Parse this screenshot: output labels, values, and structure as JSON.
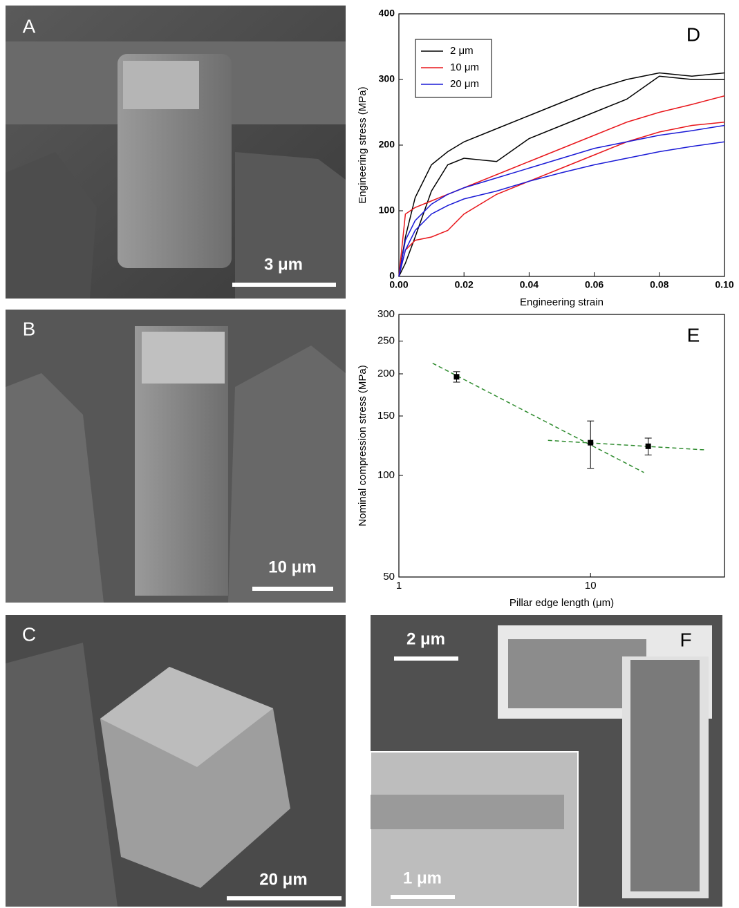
{
  "panels": [
    {
      "label": "A",
      "scale_bar": "3 μm"
    },
    {
      "label": "B",
      "scale_bar": "10 μm"
    },
    {
      "label": "C",
      "scale_bar": "20 μm"
    },
    {
      "label": "F",
      "scale_bar": "2 μm",
      "inset_scale_bar": "1 μm"
    }
  ],
  "chart_data": [
    {
      "type": "line",
      "panel_label": "D",
      "x_label": "Engineering strain",
      "y_label": "Engineering stress (MPa)",
      "x": [
        0,
        0.002,
        0.005,
        0.01,
        0.015,
        0.02,
        0.03,
        0.04,
        0.05,
        0.06,
        0.07,
        0.08,
        0.09,
        0.1
      ],
      "series": [
        {
          "name": "2 μm",
          "color": "#000000",
          "values": [
            0,
            60,
            120,
            170,
            190,
            205,
            225,
            245,
            265,
            285,
            300,
            310,
            305,
            310
          ]
        },
        {
          "name": "2 μm",
          "color": "#000000",
          "values": [
            0,
            20,
            60,
            130,
            170,
            180,
            175,
            210,
            230,
            250,
            270,
            305,
            300,
            300
          ]
        },
        {
          "name": "10 μm",
          "color": "#e8161b",
          "values": [
            0,
            95,
            105,
            115,
            125,
            135,
            155,
            175,
            195,
            215,
            235,
            250,
            262,
            275
          ]
        },
        {
          "name": "10 μm",
          "color": "#e8161b",
          "values": [
            0,
            40,
            55,
            60,
            70,
            95,
            125,
            145,
            165,
            185,
            205,
            220,
            230,
            235
          ]
        },
        {
          "name": "20 μm",
          "color": "#1a1ad6",
          "values": [
            0,
            55,
            85,
            110,
            125,
            135,
            150,
            165,
            180,
            195,
            205,
            215,
            222,
            230
          ]
        },
        {
          "name": "20 μm",
          "color": "#1a1ad6",
          "values": [
            0,
            40,
            70,
            95,
            108,
            118,
            130,
            145,
            158,
            170,
            180,
            190,
            198,
            205
          ]
        }
      ],
      "xlim": [
        0,
        0.1
      ],
      "xticks": [
        {
          "value": 0,
          "label": "0.00"
        },
        {
          "value": 0.02,
          "label": "0.02"
        },
        {
          "value": 0.04,
          "label": "0.04"
        },
        {
          "value": 0.06,
          "label": "0.06"
        },
        {
          "value": 0.08,
          "label": "0.08"
        },
        {
          "value": 0.1,
          "label": "0.10"
        }
      ],
      "ylim": [
        0,
        400
      ],
      "yticks": [
        0,
        100,
        200,
        300,
        400
      ],
      "legend": "upper left"
    },
    {
      "type": "errorbar",
      "panel_label": "E",
      "x_label": "Pillar edge length (μm)",
      "y_label": "Nominal compression stress (MPa)",
      "x": [
        2,
        10,
        20
      ],
      "values": [
        196,
        125,
        122
      ],
      "errors": [
        7,
        20,
        7
      ],
      "color": "#000000",
      "fits": [
        {
          "x": [
            1.5,
            19
          ],
          "values": [
            215,
            102
          ]
        },
        {
          "x": [
            6,
            40
          ],
          "values": [
            127,
            119
          ]
        }
      ],
      "fit_color": "#2e8b2e",
      "xscale": "log",
      "yscale": "log",
      "xlim": [
        1,
        50
      ],
      "xticks": [
        1,
        10
      ],
      "ylim": [
        50,
        300
      ],
      "yticks": [
        50,
        100,
        150,
        200,
        250,
        300
      ]
    }
  ]
}
